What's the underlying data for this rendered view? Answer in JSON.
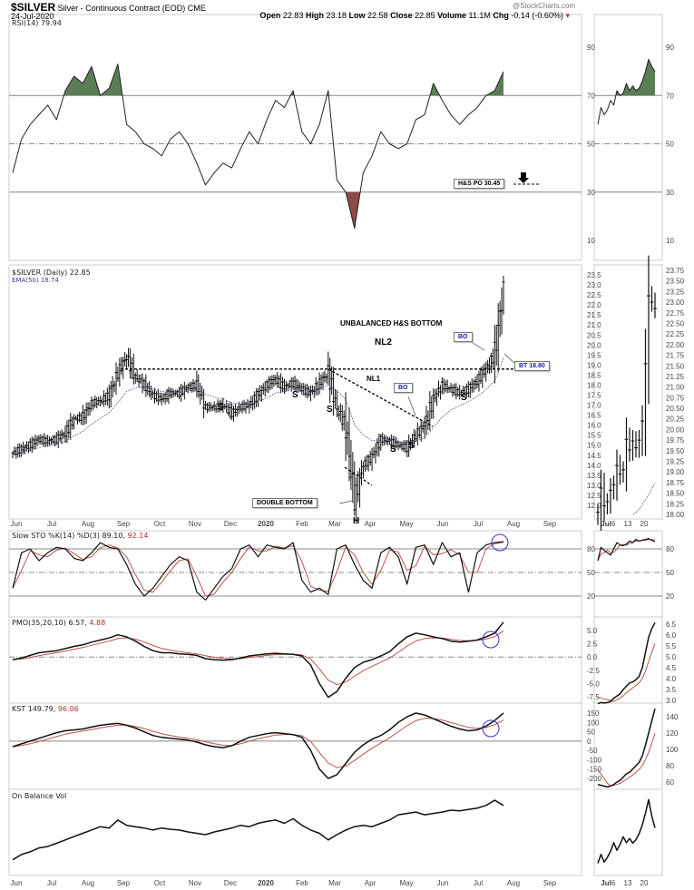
{
  "header": {
    "symbol": "$SILVER",
    "name": "Silver - Continuous Contract (EOD)",
    "exchange": "CME",
    "date": "24-Jul-2020",
    "credit": "@StockCharts.com",
    "open_label": "Open",
    "open": "22.83",
    "high_label": "High",
    "high": "23.18",
    "low_label": "Low",
    "low": "22.58",
    "close_label": "Close",
    "close": "22.85",
    "volume_label": "Volume",
    "volume": "11.1M",
    "chg_label": "Chg",
    "chg": "-0.14 (-0.60%)"
  },
  "panels": {
    "rsi_title": "RSI(14) 79.94",
    "price_title": "$SILVER (Daily) 22.85",
    "ema_title": "EMA(50) 18.74",
    "sto_title": "Slow STO %K(14) %D(3) 89.10,",
    "sto_d": "92.14",
    "pmo_title": "PMO(35,20,10) 6.57,",
    "pmo_sig": "4.88",
    "kst_title": "KST 149.79,",
    "kst_sig": "96.06",
    "obv_title": "On Balance Vol"
  },
  "annotations": {
    "hs_po": "H&S PO 30.45",
    "title": "UNBALANCED H&S BOTTOM",
    "nl2": "NL2",
    "nl1": "NL1",
    "bo": "BO",
    "bt": "BT 18.80",
    "double_bottom": "DOUBLE BOTTOM",
    "s": "S",
    "h": "H"
  },
  "colors": {
    "up_fill": "#5b7d55",
    "down_fill": "#8a4a45",
    "signal": "#c0504d",
    "circle": "#3333cc",
    "ema": "#3a3a8a"
  },
  "chart_data": {
    "type": "line",
    "x_labels": [
      "Jun",
      "Jul",
      "Aug",
      "Sep",
      "Oct",
      "Nov",
      "Dec",
      "2020",
      "Feb",
      "Mar",
      "Apr",
      "May",
      "Jun",
      "Jul",
      "Aug",
      "Sep"
    ],
    "mini_x_labels": [
      "Jul",
      "6",
      "13",
      "20"
    ],
    "price": {
      "ylim": [
        12,
        23.5
      ],
      "ticks": [
        "23.5",
        "23.0",
        "22.5",
        "22.0",
        "21.5",
        "21.0",
        "20.5",
        "20.0",
        "19.5",
        "19.0",
        "18.5",
        "18.0",
        "17.5",
        "17.0",
        "16.5",
        "16.0",
        "15.5",
        "15.0",
        "14.5",
        "14.0",
        "13.5",
        "13.0",
        "12.5",
        "12.0"
      ],
      "closes": [
        14.6,
        14.8,
        15.0,
        15.3,
        15.2,
        15.3,
        15.6,
        16.3,
        16.4,
        17.1,
        17.2,
        17.5,
        18.6,
        19.4,
        18.4,
        18.0,
        17.5,
        17.3,
        17.6,
        17.6,
        17.9,
        18.0,
        16.9,
        16.9,
        17.0,
        16.6,
        16.9,
        17.0,
        17.5,
        18.0,
        18.3,
        17.9,
        18.1,
        17.8,
        17.6,
        18.1,
        18.6,
        16.8,
        16.0,
        12.2,
        14.0,
        14.4,
        15.3,
        15.2,
        15.0,
        14.9,
        15.5,
        16.0,
        17.3,
        18.0,
        17.8,
        17.6,
        17.8,
        18.2,
        18.8,
        19.5,
        22.85
      ],
      "neckline": 18.8
    },
    "mini_price": {
      "ylim": [
        18.0,
        23.75
      ],
      "ticks": [
        "23.75",
        "23.50",
        "23.25",
        "23.00",
        "22.75",
        "22.50",
        "22.25",
        "22.00",
        "21.75",
        "21.50",
        "21.25",
        "21.00",
        "20.75",
        "20.50",
        "20.25",
        "20.00",
        "19.75",
        "19.50",
        "19.25",
        "19.00",
        "18.75",
        "18.50",
        "18.25",
        "18.00"
      ],
      "closes": [
        18.05,
        18.62,
        18.2,
        18.3,
        18.57,
        18.7,
        19.15,
        18.95,
        19.05,
        19.77,
        19.52,
        19.73,
        19.57,
        19.75,
        20.2,
        21.55,
        23.15,
        23.0,
        22.85
      ]
    },
    "rsi": {
      "ylim": [
        10,
        90
      ],
      "ticks": [
        "90",
        "70",
        "50",
        "30",
        "10"
      ],
      "values": [
        38,
        52,
        58,
        62,
        66,
        60,
        72,
        78,
        75,
        82,
        70,
        73,
        83,
        58,
        55,
        50,
        48,
        45,
        52,
        55,
        50,
        42,
        33,
        38,
        42,
        40,
        48,
        55,
        50,
        60,
        68,
        65,
        72,
        55,
        50,
        58,
        72,
        35,
        30,
        15,
        38,
        45,
        55,
        50,
        48,
        50,
        60,
        62,
        75,
        68,
        62,
        58,
        62,
        65,
        70,
        72,
        79.94
      ],
      "mini": [
        58,
        65,
        62,
        64,
        68,
        66,
        72,
        70,
        71,
        75,
        72,
        74,
        72,
        73,
        76,
        80,
        85,
        82,
        79.94
      ]
    },
    "sto": {
      "ticks": [
        "80",
        "50",
        "20"
      ],
      "k": [
        30,
        75,
        80,
        65,
        75,
        82,
        80,
        68,
        65,
        75,
        88,
        82,
        80,
        60,
        35,
        20,
        30,
        45,
        60,
        70,
        65,
        25,
        15,
        30,
        45,
        55,
        80,
        85,
        70,
        85,
        82,
        80,
        88,
        40,
        25,
        30,
        22,
        80,
        85,
        60,
        40,
        30,
        75,
        82,
        70,
        35,
        82,
        85,
        60,
        88,
        70,
        75,
        25,
        75,
        85,
        88,
        89.1
      ],
      "mini": [
        65,
        82,
        78,
        75,
        72,
        80,
        88,
        85,
        84,
        86,
        90,
        88,
        92,
        90,
        91,
        92,
        93,
        91,
        89.1
      ]
    },
    "pmo": {
      "ticks": [
        "5.0",
        "2.5",
        "0.0",
        "-2.5",
        "-5.0",
        "-7.5"
      ],
      "mini_ticks": [
        "6.5",
        "6.0",
        "5.5",
        "5.0",
        "4.5",
        "4.0",
        "3.5",
        "3.0"
      ],
      "values": [
        -0.5,
        -0.2,
        0.3,
        0.8,
        1.0,
        1.2,
        1.6,
        2.0,
        2.3,
        2.8,
        3.2,
        3.6,
        4.2,
        3.8,
        3.0,
        2.0,
        1.2,
        0.8,
        0.8,
        0.6,
        0.5,
        0.3,
        -0.3,
        -0.5,
        -0.6,
        -0.5,
        -0.2,
        0.2,
        0.4,
        0.6,
        0.7,
        0.6,
        0.5,
        0.2,
        -1.5,
        -5,
        -7.6,
        -6.5,
        -4,
        -2,
        -1,
        -0.5,
        0.2,
        1.0,
        2.5,
        3.8,
        4.5,
        4.2,
        3.8,
        3.5,
        3.0,
        2.8,
        3.0,
        3.2,
        3.8,
        4.5,
        6.57
      ],
      "mini": [
        2.85,
        2.9,
        2.88,
        2.9,
        2.95,
        3.1,
        3.2,
        3.3,
        3.5,
        3.65,
        3.8,
        3.85,
        3.95,
        4.1,
        4.5,
        5.2,
        5.9,
        6.3,
        6.57
      ]
    },
    "kst": {
      "ticks": [
        "150",
        "100",
        "50",
        "0",
        "-50",
        "-100",
        "-150",
        "-200"
      ],
      "mini_ticks": [
        "140",
        "120",
        "100",
        "80",
        "60"
      ],
      "values": [
        -30,
        -15,
        0,
        15,
        30,
        45,
        55,
        60,
        65,
        75,
        85,
        90,
        95,
        85,
        70,
        50,
        30,
        20,
        15,
        10,
        5,
        -5,
        -20,
        -30,
        -35,
        -25,
        0,
        20,
        30,
        40,
        45,
        40,
        35,
        20,
        -50,
        -150,
        -200,
        -180,
        -120,
        -60,
        -20,
        10,
        30,
        60,
        100,
        130,
        150,
        140,
        120,
        100,
        80,
        65,
        55,
        60,
        80,
        110,
        149.79
      ],
      "mini": [
        57,
        56,
        55,
        54,
        55,
        57,
        60,
        62,
        66,
        70,
        72,
        76,
        80,
        84,
        92,
        105,
        120,
        135,
        149.79
      ]
    },
    "obv": {
      "values": [
        10,
        18,
        22,
        28,
        30,
        35,
        40,
        45,
        50,
        55,
        60,
        58,
        70,
        62,
        60,
        58,
        55,
        58,
        56,
        55,
        52,
        50,
        48,
        52,
        55,
        58,
        62,
        60,
        65,
        68,
        70,
        65,
        72,
        62,
        55,
        50,
        40,
        48,
        55,
        60,
        62,
        60,
        65,
        70,
        78,
        80,
        82,
        78,
        80,
        82,
        85,
        84,
        86,
        88,
        92,
        100,
        92
      ],
      "mini": [
        10,
        25,
        12,
        20,
        30,
        45,
        32,
        42,
        55,
        45,
        52,
        44,
        50,
        60,
        75,
        95,
        118,
        90,
        70
      ]
    }
  }
}
